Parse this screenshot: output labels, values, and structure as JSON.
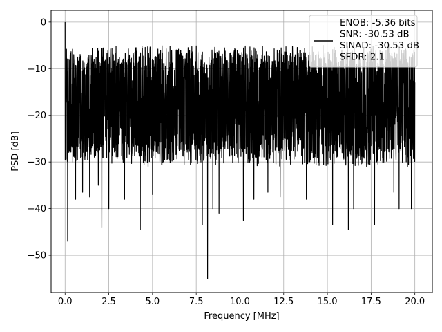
{
  "chart_data": {
    "type": "line",
    "title": "",
    "xlabel": "Frequency [MHz]",
    "ylabel": "PSD [dB]",
    "xlim": [
      -0.8,
      21.0
    ],
    "ylim": [
      -58,
      2.5
    ],
    "xticks": [
      0.0,
      2.5,
      5.0,
      7.5,
      10.0,
      12.5,
      15.0,
      17.5,
      20.0
    ],
    "xtick_labels": [
      "0.0",
      "2.5",
      "5.0",
      "7.5",
      "10.0",
      "12.5",
      "15.0",
      "17.5",
      "20.0"
    ],
    "yticks": [
      0,
      -10,
      -20,
      -30,
      -40,
      -50
    ],
    "ytick_labels": [
      "0",
      "−10",
      "−20",
      "−30",
      "−40",
      "−50"
    ],
    "grid": true,
    "legend_position": "top-right",
    "legend_lines": [
      "ENOB: -5.36 bits",
      "SNR: -30.53 dB",
      "SINAD: -30.53 dB",
      "SFDR: 2.1"
    ],
    "series": [
      {
        "color": "#000000",
        "x_range": [
          0.0,
          20.0
        ],
        "band": {
          "upper": [
            -5,
            -9
          ],
          "lower": [
            -26,
            -31
          ]
        },
        "peak": {
          "x": 0.0,
          "y": 0.0
        },
        "deep_dips": [
          {
            "x": 0.15,
            "y": -47
          },
          {
            "x": 0.6,
            "y": -38
          },
          {
            "x": 1.0,
            "y": -36.5
          },
          {
            "x": 1.4,
            "y": -37.5
          },
          {
            "x": 1.9,
            "y": -35
          },
          {
            "x": 2.1,
            "y": -44
          },
          {
            "x": 2.5,
            "y": -40
          },
          {
            "x": 3.4,
            "y": -38
          },
          {
            "x": 4.3,
            "y": -44.5
          },
          {
            "x": 5.0,
            "y": -37
          },
          {
            "x": 7.85,
            "y": -43.5
          },
          {
            "x": 8.15,
            "y": -55
          },
          {
            "x": 8.45,
            "y": -40
          },
          {
            "x": 8.8,
            "y": -41
          },
          {
            "x": 10.2,
            "y": -42.5
          },
          {
            "x": 10.8,
            "y": -38
          },
          {
            "x": 11.6,
            "y": -36.5
          },
          {
            "x": 12.3,
            "y": -37.5
          },
          {
            "x": 13.8,
            "y": -38
          },
          {
            "x": 15.3,
            "y": -43.5
          },
          {
            "x": 16.2,
            "y": -44.5
          },
          {
            "x": 16.5,
            "y": -40
          },
          {
            "x": 17.7,
            "y": -43.5
          },
          {
            "x": 18.8,
            "y": -36.5
          },
          {
            "x": 19.1,
            "y": -40
          },
          {
            "x": 19.8,
            "y": -40
          }
        ]
      }
    ]
  }
}
